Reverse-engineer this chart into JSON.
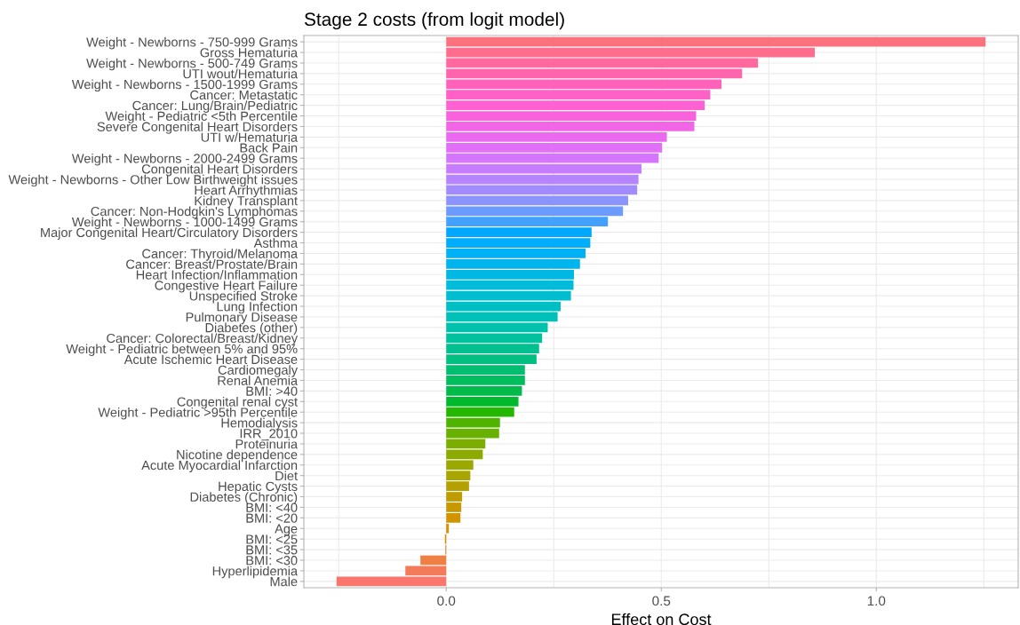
{
  "chart_data": {
    "type": "bar",
    "orientation": "horizontal",
    "title": "Stage 2 costs (from logit model)",
    "xlabel": "Effect on Cost",
    "categories": [
      "Weight - Newborns - 750-999 Grams",
      "Gross Hematuria",
      "Weight - Newborns - 500-749 Grams",
      "UTI wout/Hematuria",
      "Weight - Newborns - 1500-1999 Grams",
      "Cancer: Metastatic",
      "Cancer: Lung/Brain/Pediatric",
      "Weight - Pediatric <5th Percentile",
      "Severe Congenital Heart Disorders",
      "UTI w/Hematuria",
      "Back Pain",
      "Weight - Newborns - 2000-2499 Grams",
      "Congenital Heart Disorders",
      "Weight - Newborns - Other Low Birthweight issues",
      "Heart Arrhythmias",
      "Kidney Transplant",
      "Cancer: Non-Hodgkin's Lymphomas",
      "Weight - Newborns - 1000-1499 Grams",
      "Major Congenital Heart/Circulatory Disorders",
      "Asthma",
      "Cancer: Thyroid/Melanoma",
      "Cancer: Breast/Prostate/Brain",
      "Heart Infection/Inflammation",
      "Congestive Heart Failure",
      "Unspecified Stroke",
      "Lung Infection",
      "Pulmonary Disease",
      "Diabetes (other)",
      "Cancer: Colorectal/Breast/Kidney",
      "Weight - Pediatric between 5% and 95%",
      "Acute Ischemic Heart Disease",
      "Cardiomegaly",
      "Renal Anemia",
      "BMI: >40",
      "Congenital renal cyst",
      "Weight - Pediatric >95th Percentile",
      "Hemodialysis",
      "IRR_2010",
      "Proteinuria",
      "Nicotine dependence",
      "Acute Myocardial Infarction",
      "Diet",
      "Hepatic Cysts",
      "Diabetes (Chronic)",
      "BMI: <40",
      "BMI: <20",
      "Age",
      "BMI: <25",
      "BMI: <35",
      "BMI: <30",
      "Hyperlipidemia",
      "Male"
    ],
    "values": [
      1.254,
      0.857,
      0.725,
      0.688,
      0.64,
      0.614,
      0.601,
      0.581,
      0.577,
      0.513,
      0.502,
      0.494,
      0.454,
      0.447,
      0.444,
      0.423,
      0.411,
      0.376,
      0.338,
      0.335,
      0.324,
      0.311,
      0.297,
      0.296,
      0.29,
      0.266,
      0.259,
      0.236,
      0.223,
      0.216,
      0.21,
      0.183,
      0.183,
      0.176,
      0.168,
      0.158,
      0.125,
      0.123,
      0.091,
      0.085,
      0.063,
      0.056,
      0.053,
      0.037,
      0.035,
      0.033,
      0.006,
      -0.003,
      -0.002,
      -0.06,
      -0.095,
      -0.255
    ],
    "colors": [
      "#fc717e",
      "#ff6d8e",
      "#ff699d",
      "#ff65ac",
      "#ff63b9",
      "#ff61c6",
      "#fd61d2",
      "#f962dd",
      "#f365e7",
      "#eb69f0",
      "#e16ff7",
      "#d575fe",
      "#c77cff",
      "#b684ff",
      "#a28bff",
      "#8b93ff",
      "#6d9aff",
      "#42a0ff",
      "#00a7ff",
      "#00acfc",
      "#00b1f5",
      "#00b5ed",
      "#00b8e4",
      "#00bbda",
      "#00bdd0",
      "#00bfc4",
      "#00c0b8",
      "#00c1ab",
      "#00c19e",
      "#00c090",
      "#00bf80",
      "#00be70",
      "#00bd5e",
      "#00bb49",
      "#00b92e",
      "#24b700",
      "#4fb400",
      "#68b100",
      "#7cae00",
      "#8cab00",
      "#9ba800",
      "#a8a400",
      "#b4a000",
      "#be9c00",
      "#c89800",
      "#d19300",
      "#d98f00",
      "#e18a00",
      "#e88521",
      "#ee8043",
      "#f37b5a",
      "#f8766d"
    ],
    "xlim": [
      -0.331,
      1.33
    ],
    "xticks": [
      {
        "value": -0.25,
        "label": null
      },
      {
        "value": 0,
        "label": "0.0"
      },
      {
        "value": 0.25,
        "label": null
      },
      {
        "value": 0.5,
        "label": "0.5"
      },
      {
        "value": 0.75,
        "label": null
      },
      {
        "value": 1,
        "label": "1.0"
      },
      {
        "value": 1.25,
        "label": null
      }
    ],
    "grid": true
  }
}
